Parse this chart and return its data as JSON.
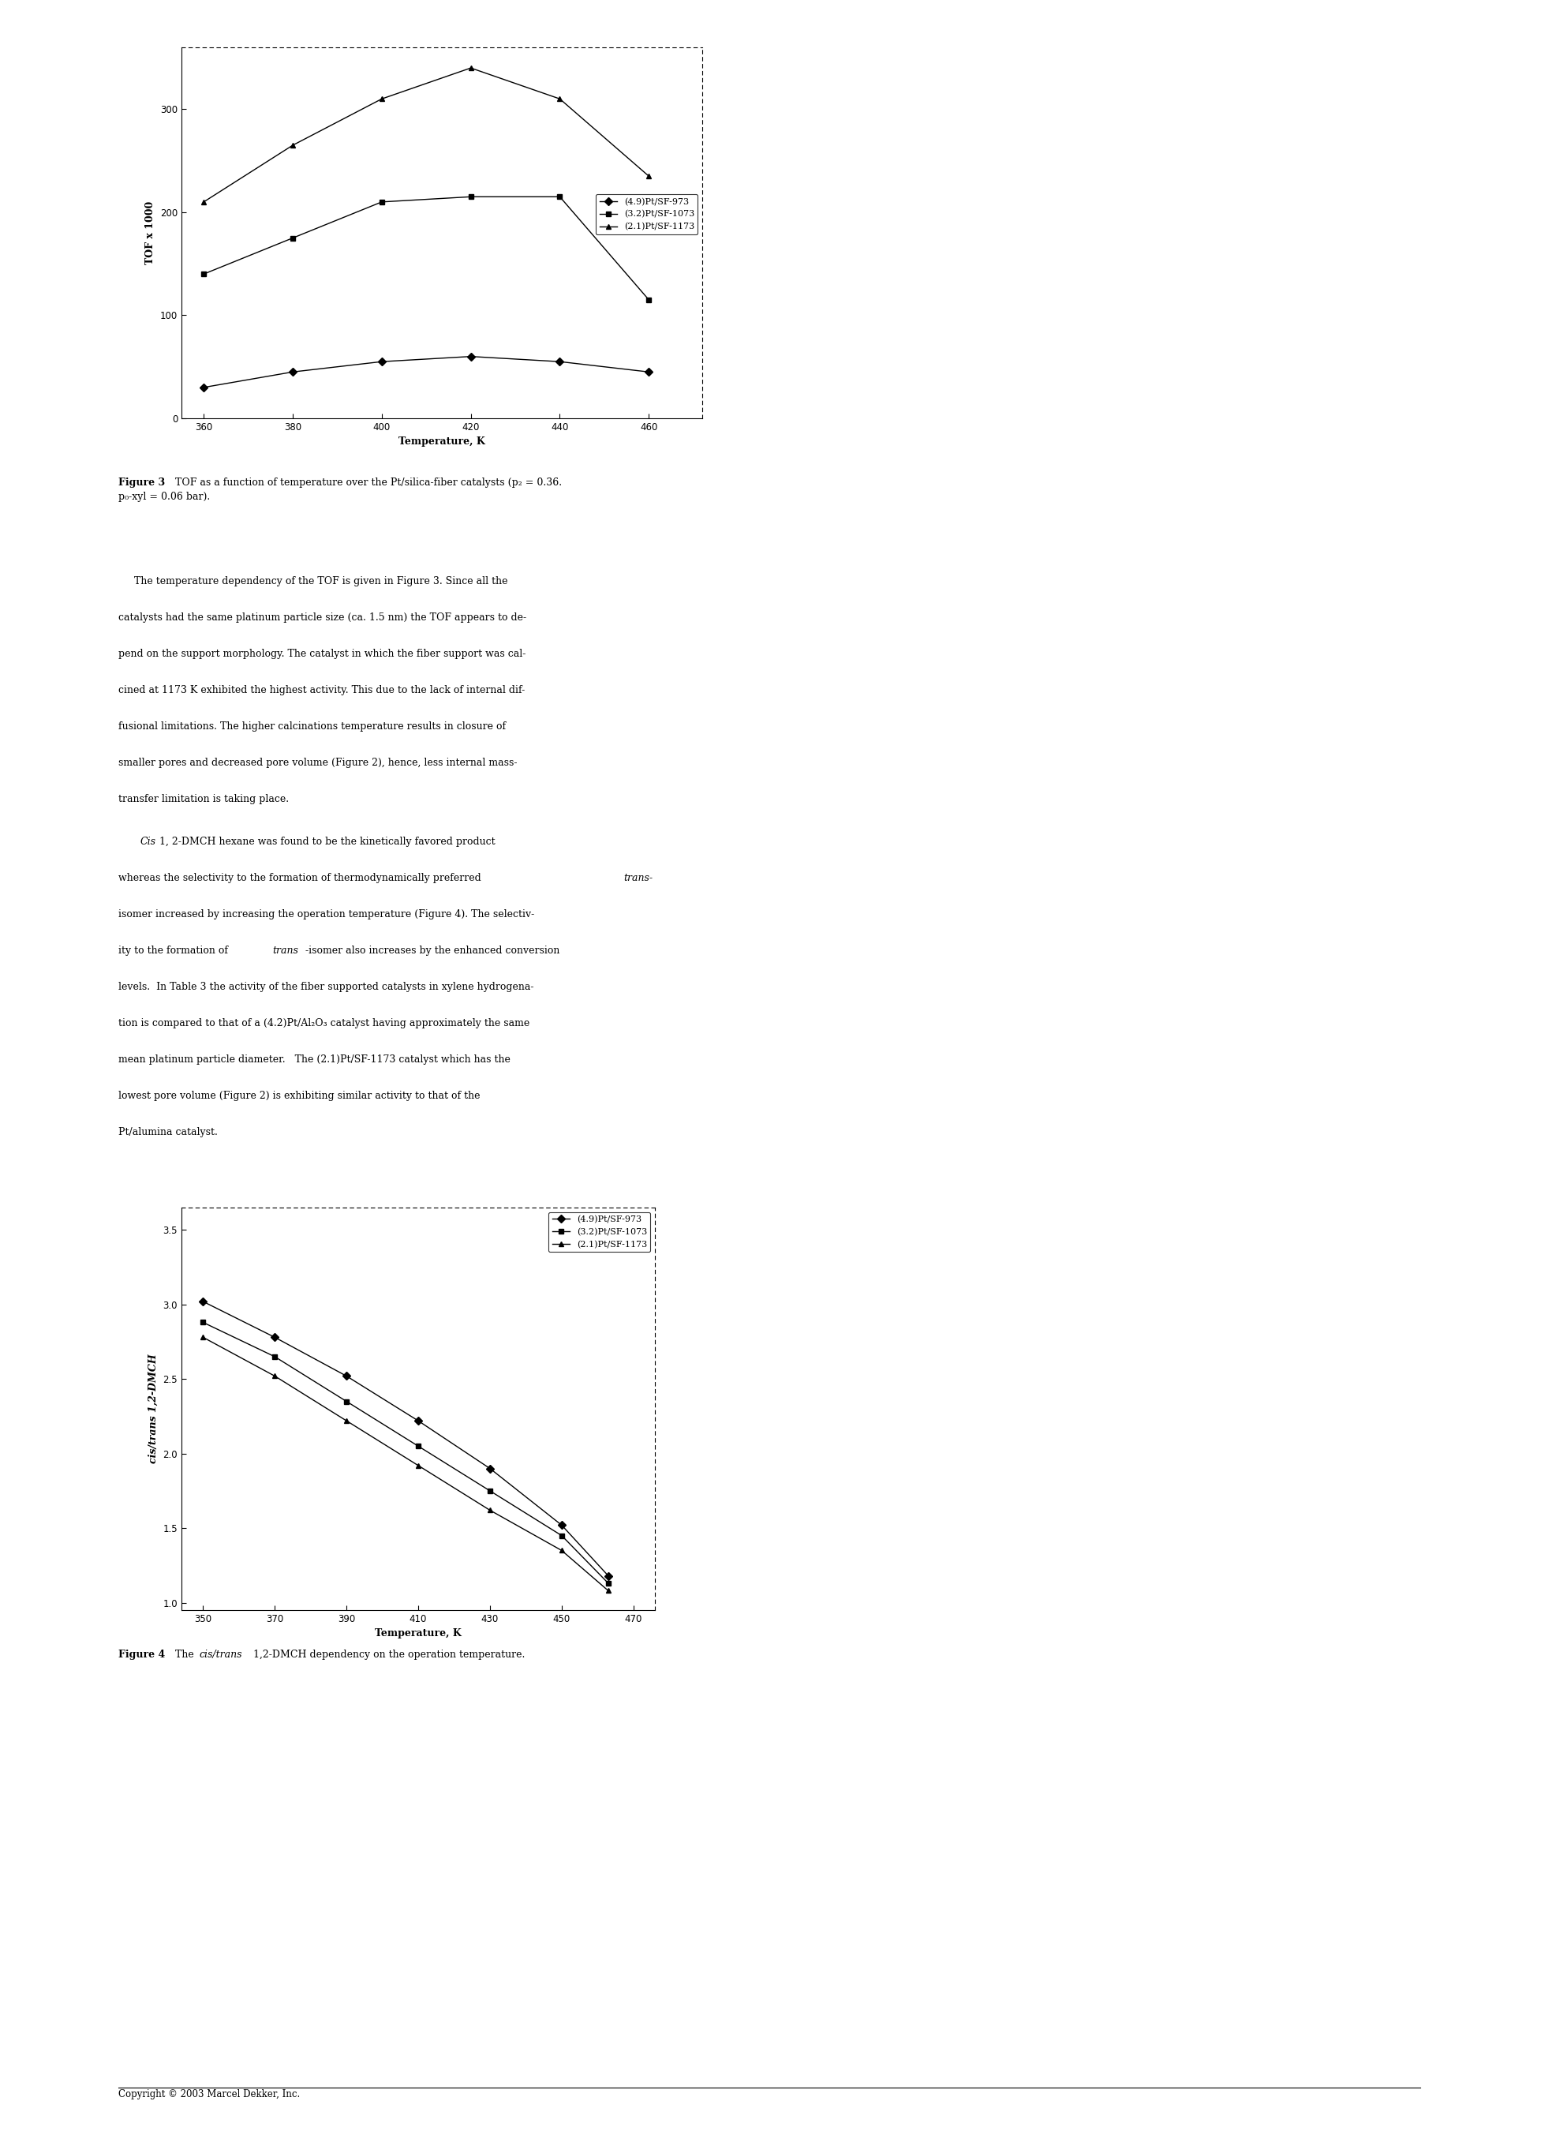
{
  "fig3": {
    "xlabel": "Temperature, K",
    "ylabel": "TOF x 1000",
    "xlim": [
      355,
      472
    ],
    "ylim": [
      0,
      360
    ],
    "xticks": [
      360,
      380,
      400,
      420,
      440,
      460
    ],
    "yticks": [
      0,
      100,
      200,
      300
    ],
    "series": [
      {
        "label": "(4.9)Pt/SF-973",
        "marker": "D",
        "color": "black",
        "x": [
          360,
          380,
          400,
          420,
          440,
          460
        ],
        "y": [
          30,
          45,
          55,
          60,
          55,
          45
        ]
      },
      {
        "label": "(3.2)Pt/SF-1073",
        "marker": "s",
        "color": "black",
        "x": [
          360,
          380,
          400,
          420,
          440,
          460
        ],
        "y": [
          140,
          175,
          210,
          215,
          215,
          115
        ]
      },
      {
        "label": "(2.1)Pt/SF-1173",
        "marker": "^",
        "color": "black",
        "x": [
          360,
          380,
          400,
          420,
          440,
          460
        ],
        "y": [
          210,
          265,
          310,
          340,
          310,
          235
        ]
      }
    ]
  },
  "fig3_caption_bold": "Figure 3",
  "fig3_caption_normal": " TOF as a function of temperature over the Pt/silica-fiber catalysts (p₂ = 0.36.\np₀-xyl = 0.06 bar).",
  "fig4": {
    "xlabel": "Temperature, K",
    "ylabel": "cis/trans 1,2-DMCH",
    "xlim": [
      344,
      476
    ],
    "ylim": [
      0.95,
      3.65
    ],
    "xticks": [
      350,
      370,
      390,
      410,
      430,
      450,
      470
    ],
    "yticks": [
      1.0,
      1.5,
      2.0,
      2.5,
      3.0,
      3.5
    ],
    "series": [
      {
        "label": "(4.9)Pt/SF-973",
        "marker": "D",
        "color": "black",
        "x": [
          350,
          370,
          390,
          410,
          430,
          450,
          463
        ],
        "y": [
          3.02,
          2.78,
          2.52,
          2.22,
          1.9,
          1.52,
          1.18
        ]
      },
      {
        "label": "(3.2)Pt/SF-1073",
        "marker": "s",
        "color": "black",
        "x": [
          350,
          370,
          390,
          410,
          430,
          450,
          463
        ],
        "y": [
          2.88,
          2.65,
          2.35,
          2.05,
          1.75,
          1.45,
          1.13
        ]
      },
      {
        "label": "(2.1)Pt/SF-1173",
        "marker": "^",
        "color": "black",
        "x": [
          350,
          370,
          390,
          410,
          430,
          450,
          463
        ],
        "y": [
          2.78,
          2.52,
          2.22,
          1.92,
          1.62,
          1.35,
          1.08
        ]
      }
    ]
  },
  "fig4_caption_bold": "Figure 4",
  "fig4_caption_italic": "cis/trans",
  "fig4_caption_normal": " 1,2-DMCH dependency on the operation temperature.",
  "body_para1": [
    "     The temperature dependency of the TOF is given in Figure 3. Since all the",
    "catalysts had the same platinum particle size (ca. 1.5 nm) the TOF appears to de-",
    "pend on the support morphology. The catalyst in which the fiber support was cal-",
    "cined at 1173 K exhibited the highest activity. This due to the lack of internal dif-",
    "fusional limitations. The higher calcinations temperature results in closure of",
    "smaller pores and decreased pore volume (Figure 2), hence, less internal mass-",
    "transfer limitation is taking place."
  ],
  "body_para2_line1_normal1": "     ",
  "body_para2_line1_italic": "Cis",
  "body_para2_line1_normal2": " 1, 2-DMCH hexane was found to be the kinetically favored product",
  "body_para2": [
    "whereas the selectivity to the formation of thermodynamically preferred ",
    "isomer increased by increasing the operation temperature (Figure 4). The selectiv-",
    "ity to the formation of ",
    "levels.  In Table 3 the activity of the fiber supported catalysts in xylene hydrogena-",
    "tion is compared to that of a (4.2)Pt/Al₂O₃ catalyst having approximately the same",
    "mean platinum particle diameter.   The (2.1)Pt/SF-1173 catalyst which has the",
    "lowest pore volume (Figure 2) is exhibiting similar activity to that of the",
    "Pt/alumina catalyst."
  ],
  "copyright_text": "Copyright © 2003 Marcel Dekker, Inc."
}
